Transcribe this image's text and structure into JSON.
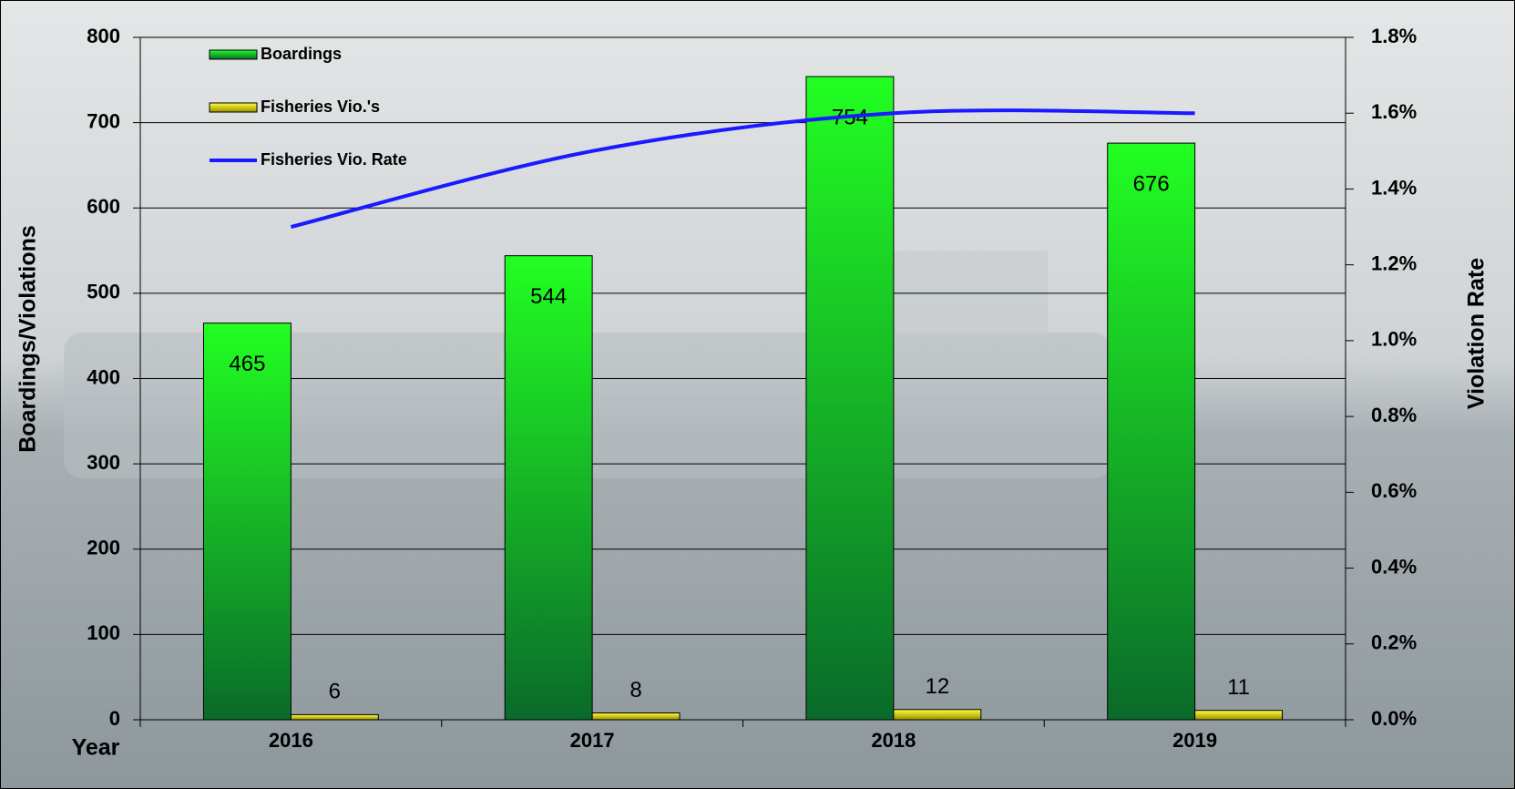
{
  "chart_data": {
    "type": "bar",
    "categories": [
      "2016",
      "2017",
      "2018",
      "2019"
    ],
    "x_label": "Year",
    "y_label": "Boardings/Violations",
    "y2_label": "Violation Rate",
    "series": [
      {
        "name": "Boardings",
        "color": "#22ee22",
        "values": [
          465,
          544,
          754,
          676
        ]
      },
      {
        "name": "Fisheries Vio.'s",
        "color": "#e8e020",
        "values": [
          6,
          8,
          12,
          11
        ]
      },
      {
        "name": "Fisheries Vio. Rate",
        "color": "#1a1aff",
        "type": "line",
        "axis": "y2",
        "values": [
          1.3,
          1.5,
          1.6,
          1.6
        ]
      }
    ],
    "ylim": [
      0,
      800
    ],
    "yticks": [
      0,
      100,
      200,
      300,
      400,
      500,
      600,
      700,
      800
    ],
    "y2lim": [
      0,
      1.8
    ],
    "y2ticks": [
      {
        "value": 0,
        "label": "0.0%"
      },
      {
        "value": 0.2,
        "label": "0.2%"
      },
      {
        "value": 0.4,
        "label": "0.4%"
      },
      {
        "value": 0.6,
        "label": "0.6%"
      },
      {
        "value": 0.8,
        "label": "0.8%"
      },
      {
        "value": 1.0,
        "label": "1.0%"
      },
      {
        "value": 1.2,
        "label": "1.2%"
      },
      {
        "value": 1.4,
        "label": "1.4%"
      },
      {
        "value": 1.6,
        "label": "1.6%"
      },
      {
        "value": 1.8,
        "label": "1.8%"
      }
    ],
    "grid": true,
    "legend": "upper left"
  }
}
